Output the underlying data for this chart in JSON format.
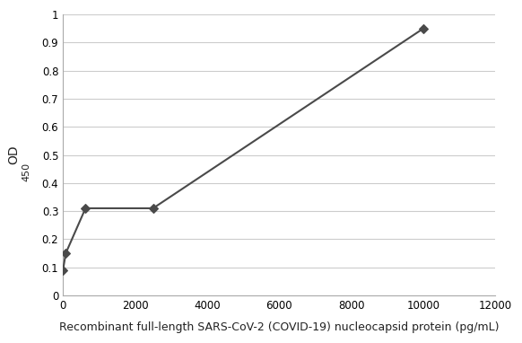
{
  "x": [
    0,
    78,
    625,
    2500,
    10000
  ],
  "y": [
    0.09,
    0.15,
    0.31,
    0.31,
    0.95
  ],
  "line_color": "#4a4a4a",
  "marker": "D",
  "marker_size": 5,
  "marker_color": "#4a4a4a",
  "xlabel": "Recombinant full-length SARS-CoV-2 (COVID-19) nucleocapsid protein (pg/mL)",
  "ylabel": "OD  450",
  "xlim": [
    0,
    12000
  ],
  "ylim": [
    0,
    1.0
  ],
  "xticks": [
    0,
    2000,
    4000,
    6000,
    8000,
    10000,
    12000
  ],
  "yticks": [
    0,
    0.1,
    0.2,
    0.3,
    0.4,
    0.5,
    0.6,
    0.7,
    0.8,
    0.9,
    1
  ],
  "grid_color": "#cccccc",
  "background_color": "#ffffff",
  "xlabel_fontsize": 9,
  "ylabel_fontsize": 9,
  "tick_fontsize": 8.5
}
